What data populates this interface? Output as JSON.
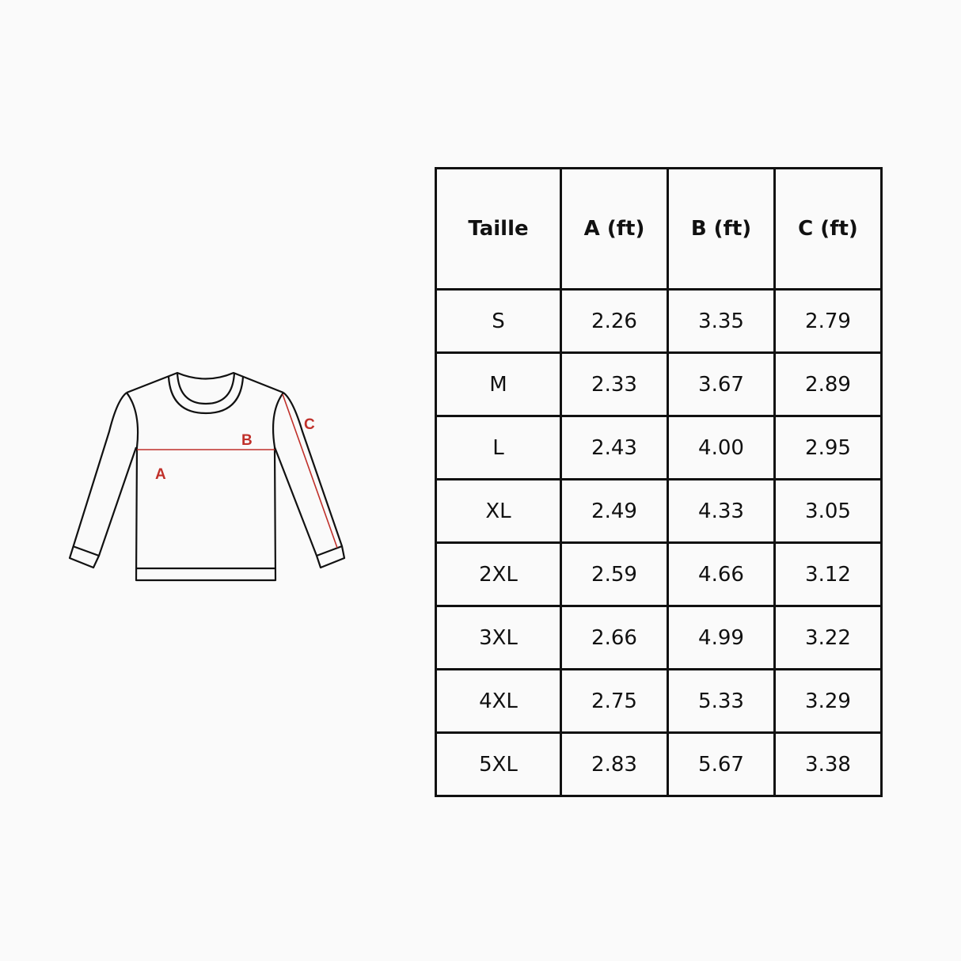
{
  "diagram": {
    "labels": {
      "a": "A",
      "b": "B",
      "c": "C"
    },
    "colors": {
      "outline": "#111111",
      "measure": "#c0302a"
    }
  },
  "table": {
    "headers": [
      "Taille",
      "A (ft)",
      "B (ft)",
      "C (ft)"
    ],
    "rows": [
      [
        "S",
        "2.26",
        "3.35",
        "2.79"
      ],
      [
        "M",
        "2.33",
        "3.67",
        "2.89"
      ],
      [
        "L",
        "2.43",
        "4.00",
        "2.95"
      ],
      [
        "XL",
        "2.49",
        "4.33",
        "3.05"
      ],
      [
        "2XL",
        "2.59",
        "4.66",
        "3.12"
      ],
      [
        "3XL",
        "2.66",
        "4.99",
        "3.22"
      ],
      [
        "4XL",
        "2.75",
        "5.33",
        "3.29"
      ],
      [
        "5XL",
        "2.83",
        "5.67",
        "3.38"
      ]
    ]
  }
}
